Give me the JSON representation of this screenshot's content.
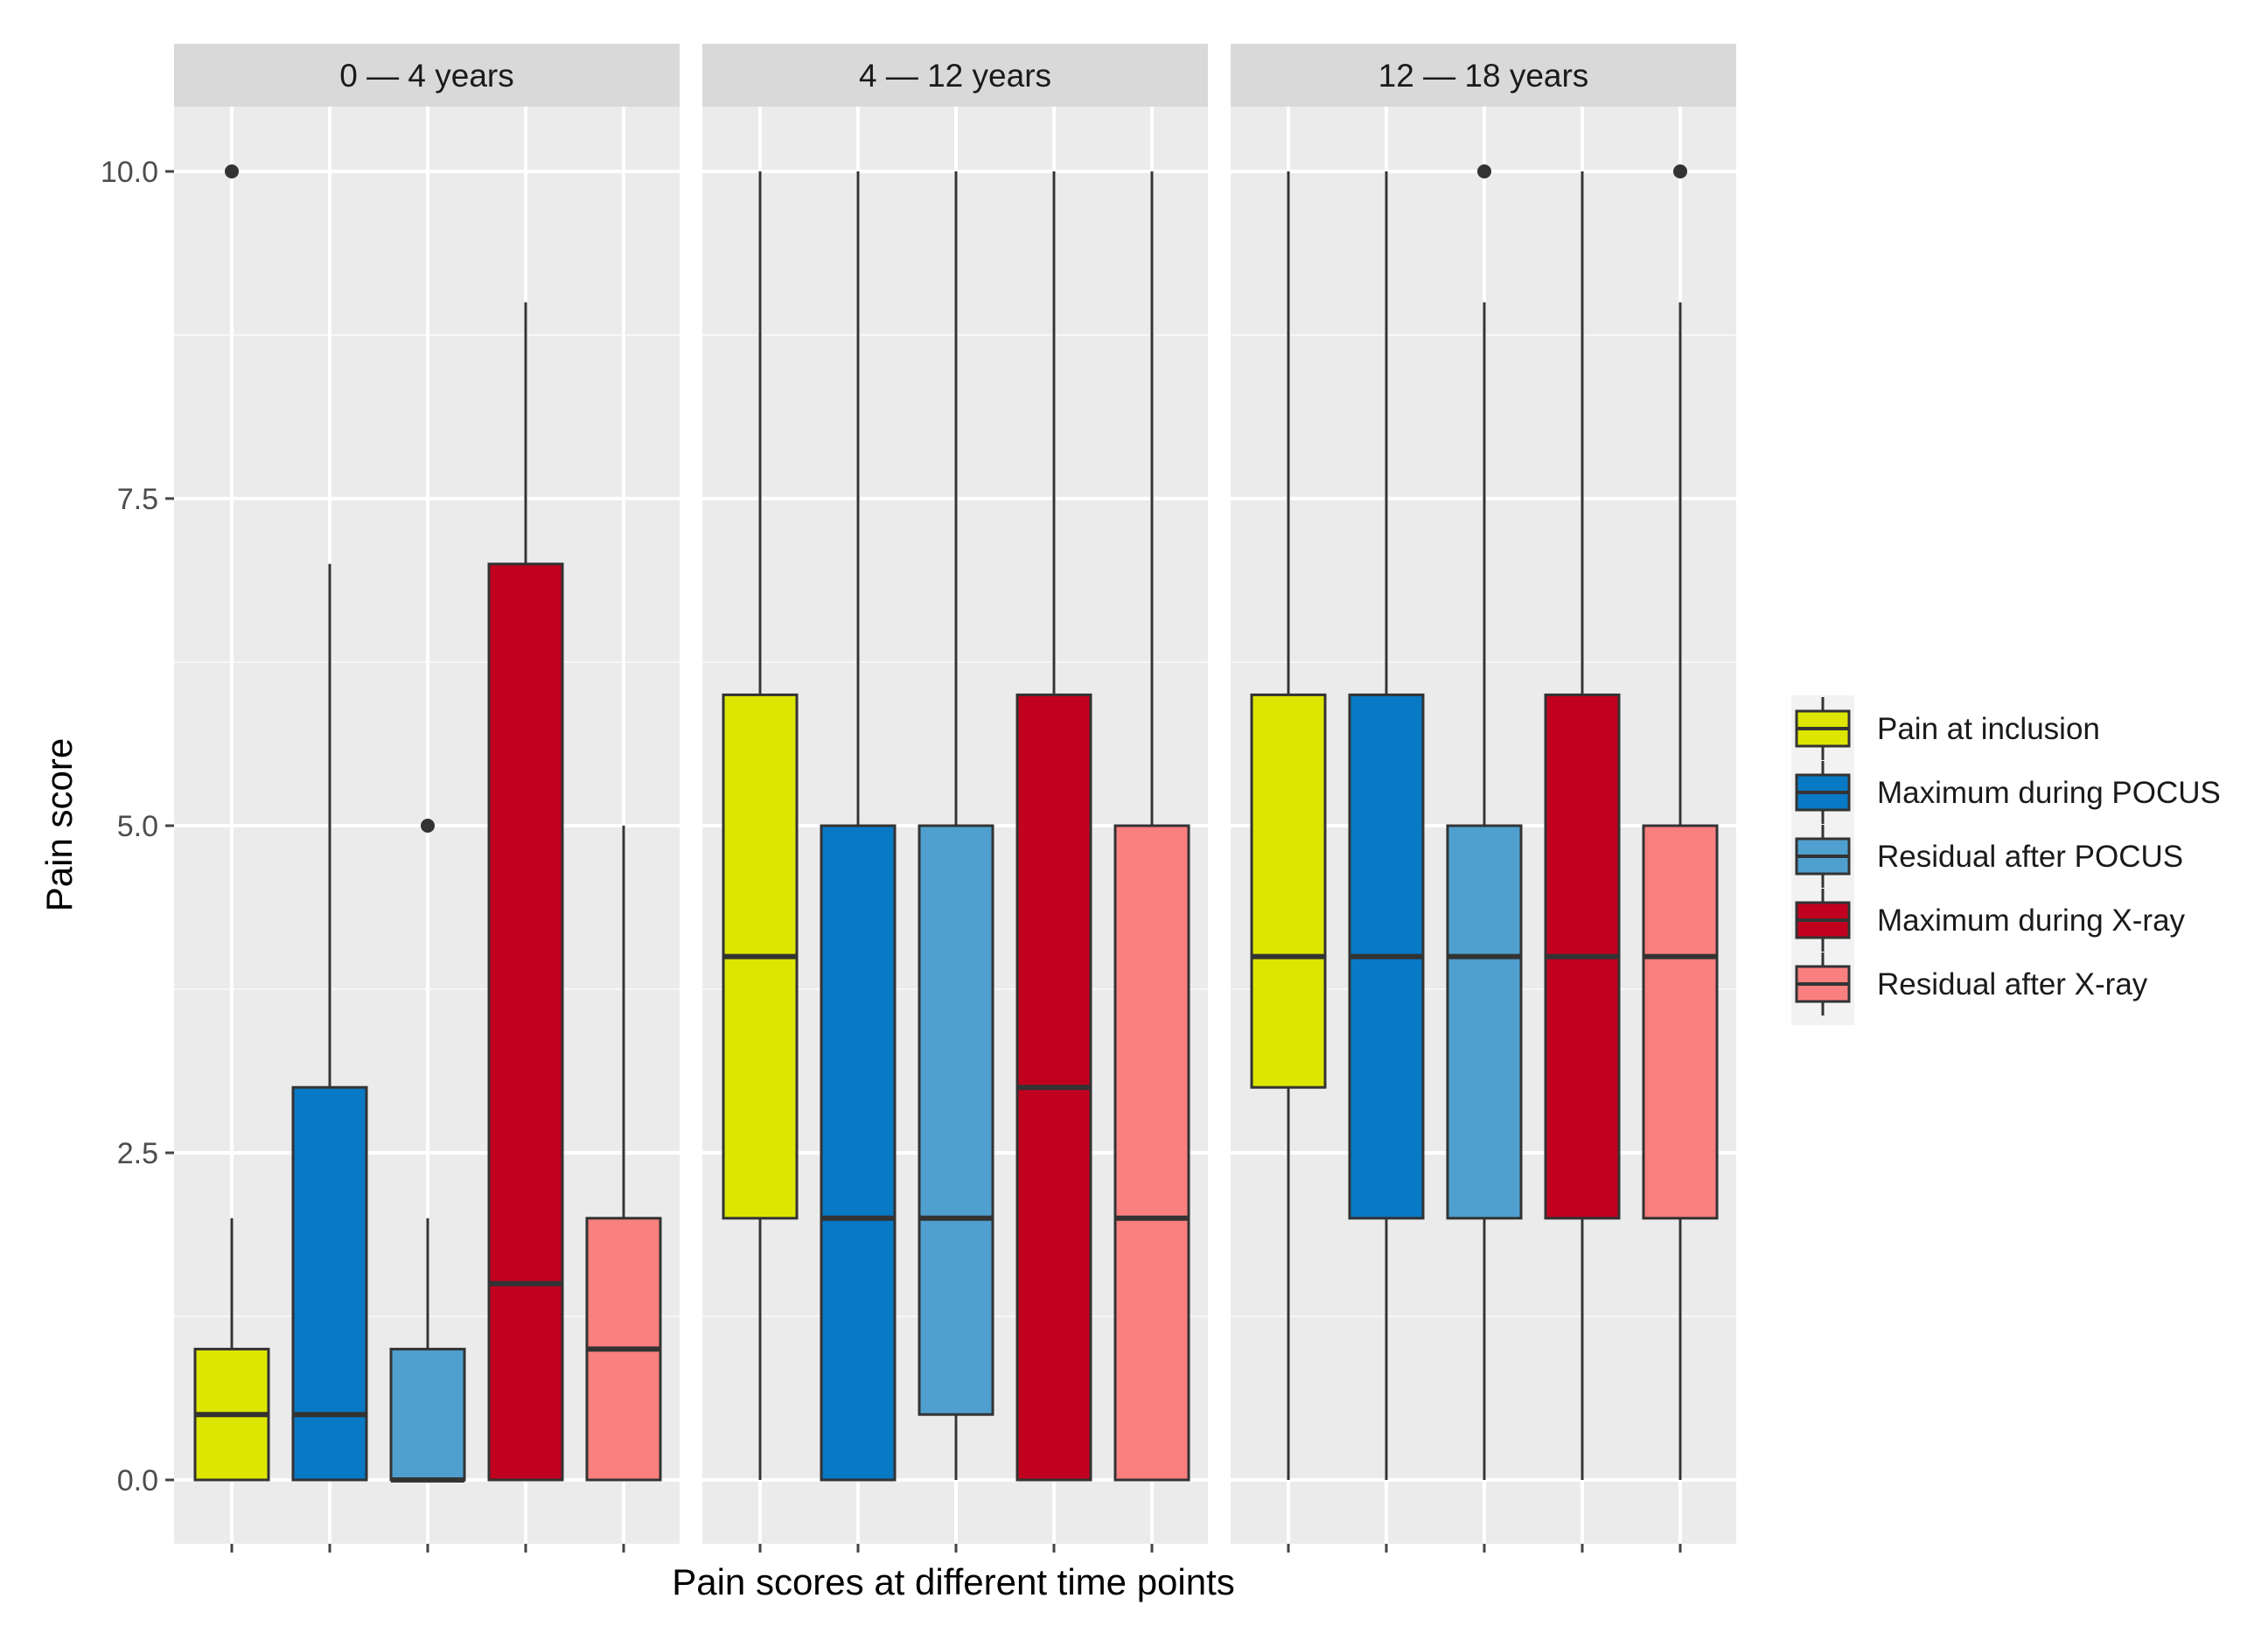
{
  "chart_data": {
    "type": "boxplot",
    "title": "",
    "xlabel": "Pain scores at different time points",
    "ylabel": "Pain score",
    "ylim": [
      -0.4,
      10.8
    ],
    "yticks": [
      0.0,
      2.5,
      5.0,
      7.5,
      10.0
    ],
    "ytick_labels": [
      "0.0",
      "2.5",
      "5.0",
      "7.5",
      "10.0"
    ],
    "grid": true,
    "legend_position": "right",
    "series": [
      {
        "name": "Pain at inclusion",
        "color": "#DDE600"
      },
      {
        "name": "Maximum during POCUS",
        "color": "#0879C5"
      },
      {
        "name": "Residual after POCUS",
        "color": "#4FA0CF"
      },
      {
        "name": "Maximum during X-ray",
        "color": "#C1001F"
      },
      {
        "name": "Residual after X-ray",
        "color": "#FA7F7F"
      }
    ],
    "panels": [
      {
        "label": "0 — 4 years",
        "boxes": [
          {
            "series": "Pain at inclusion",
            "whisker_low": 0,
            "q1": 0,
            "median": 0.5,
            "q3": 1,
            "whisker_high": 2,
            "outliers": [
              10
            ]
          },
          {
            "series": "Maximum during POCUS",
            "whisker_low": 0,
            "q1": 0,
            "median": 0.5,
            "q3": 3,
            "whisker_high": 7,
            "outliers": []
          },
          {
            "series": "Residual after POCUS",
            "whisker_low": 0,
            "q1": 0,
            "median": 0,
            "q3": 1,
            "whisker_high": 2,
            "outliers": [
              5
            ]
          },
          {
            "series": "Maximum during X-ray",
            "whisker_low": 0,
            "q1": 0,
            "median": 1.5,
            "q3": 7,
            "whisker_high": 9,
            "outliers": []
          },
          {
            "series": "Residual after X-ray",
            "whisker_low": 0,
            "q1": 0,
            "median": 1,
            "q3": 2,
            "whisker_high": 5,
            "outliers": []
          }
        ]
      },
      {
        "label": "4 — 12 years",
        "boxes": [
          {
            "series": "Pain at inclusion",
            "whisker_low": 0,
            "q1": 2,
            "median": 4,
            "q3": 6,
            "whisker_high": 10,
            "outliers": []
          },
          {
            "series": "Maximum during POCUS",
            "whisker_low": 0,
            "q1": 0,
            "median": 2,
            "q3": 5,
            "whisker_high": 10,
            "outliers": []
          },
          {
            "series": "Residual after POCUS",
            "whisker_low": 0,
            "q1": 0.5,
            "median": 2,
            "q3": 5,
            "whisker_high": 10,
            "outliers": []
          },
          {
            "series": "Maximum during X-ray",
            "whisker_low": 0,
            "q1": 0,
            "median": 3,
            "q3": 6,
            "whisker_high": 10,
            "outliers": []
          },
          {
            "series": "Residual after X-ray",
            "whisker_low": 0,
            "q1": 0,
            "median": 2,
            "q3": 5,
            "whisker_high": 10,
            "outliers": []
          }
        ]
      },
      {
        "label": "12 — 18 years",
        "boxes": [
          {
            "series": "Pain at inclusion",
            "whisker_low": 0,
            "q1": 3,
            "median": 4,
            "q3": 6,
            "whisker_high": 10,
            "outliers": []
          },
          {
            "series": "Maximum during POCUS",
            "whisker_low": 0,
            "q1": 2,
            "median": 4,
            "q3": 6,
            "whisker_high": 10,
            "outliers": []
          },
          {
            "series": "Residual after POCUS",
            "whisker_low": 0,
            "q1": 2,
            "median": 4,
            "q3": 5,
            "whisker_high": 9,
            "outliers": [
              10
            ]
          },
          {
            "series": "Maximum during X-ray",
            "whisker_low": 0,
            "q1": 2,
            "median": 4,
            "q3": 6,
            "whisker_high": 10,
            "outliers": []
          },
          {
            "series": "Residual after X-ray",
            "whisker_low": 0,
            "q1": 2,
            "median": 4,
            "q3": 5,
            "whisker_high": 9,
            "outliers": [
              10
            ]
          }
        ]
      }
    ]
  }
}
